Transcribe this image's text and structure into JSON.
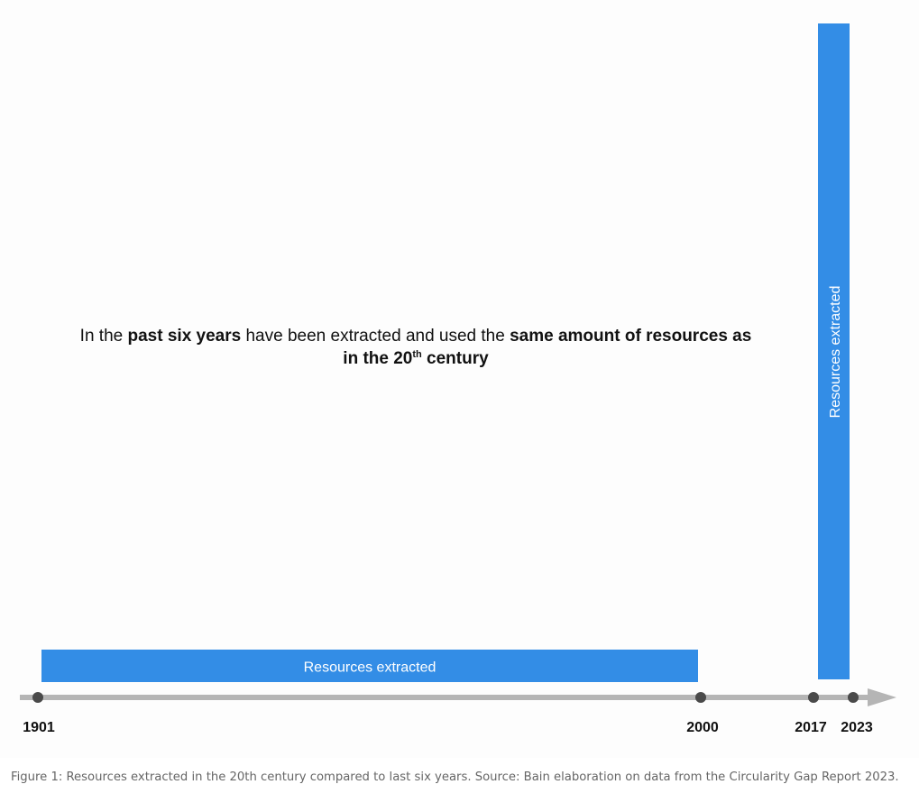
{
  "headline": {
    "part1": "In the ",
    "bold1": "past six years",
    "part2": " have been extracted and used the ",
    "bold2": "same amount of resources as",
    "bold3_pre": "in the 20",
    "sup": "th",
    "bold3_post": " century"
  },
  "bars": {
    "twentieth_century_label": "Resources extracted",
    "recent_label": "Resources extracted"
  },
  "timeline": {
    "years": [
      "1901",
      "2000",
      "2017",
      "2023"
    ]
  },
  "colors": {
    "bar": "#338de6",
    "axis": "#b5b5b5",
    "marker": "#4a4a4a"
  },
  "caption": "Figure 1: Resources extracted in the 20th century compared to last six years. Source: Bain elaboration on data from the Circularity Gap Report 2023."
}
